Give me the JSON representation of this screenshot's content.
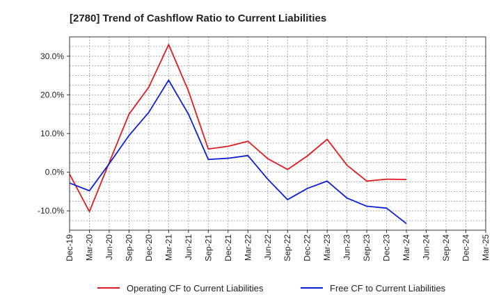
{
  "chart_data": {
    "type": "line",
    "title": "[2780]  Trend of Cashflow Ratio to Current Liabilities",
    "xlabel": "",
    "ylabel": "",
    "x": [
      "Dec-19",
      "Mar-20",
      "Jun-20",
      "Sep-20",
      "Dec-20",
      "Mar-21",
      "Jun-21",
      "Sep-21",
      "Dec-21",
      "Mar-22",
      "Jun-22",
      "Sep-22",
      "Dec-22",
      "Mar-23",
      "Jun-23",
      "Sep-23",
      "Dec-23",
      "Mar-24",
      "Jun-24",
      "Sep-24",
      "Dec-24",
      "Mar-25"
    ],
    "ylim": [
      -15,
      35
    ],
    "yticks": [
      -10,
      0,
      10,
      20,
      30
    ],
    "ytick_labels": [
      "-10.0%",
      "0.0%",
      "10.0%",
      "20.0%",
      "30.0%"
    ],
    "grid": true,
    "legend_position": "bottom",
    "series": [
      {
        "name": "Operating CF to Current Liabilities",
        "color": "#e31a1c",
        "values": [
          -0.5,
          -10.2,
          2.5,
          15.0,
          22.0,
          33.0,
          21.0,
          6.0,
          6.7,
          8.0,
          3.5,
          0.7,
          4.2,
          8.5,
          1.8,
          -2.3,
          -1.8,
          -1.9,
          null,
          null,
          null,
          null
        ]
      },
      {
        "name": "Free CF to Current Liabilities",
        "color": "#0a1fd6",
        "values": [
          -2.8,
          -4.8,
          2.2,
          9.5,
          15.5,
          23.8,
          15.0,
          3.3,
          3.6,
          4.3,
          -1.8,
          -7.1,
          -4.2,
          -2.3,
          -6.7,
          -8.8,
          -9.3,
          -13.3,
          null,
          null,
          null,
          null
        ]
      }
    ]
  }
}
